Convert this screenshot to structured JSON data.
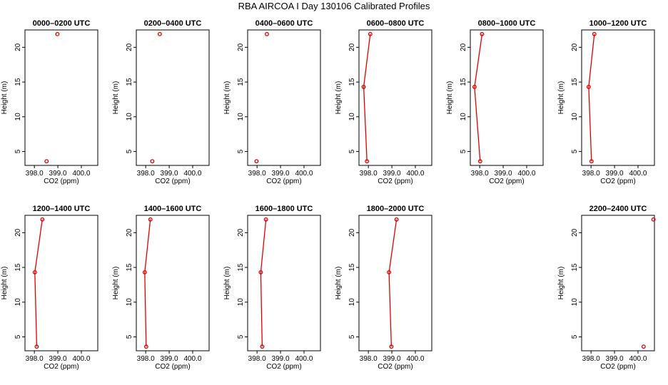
{
  "figure": {
    "title": "RBA AIRCOA I  Day 130106  Calibrated Profiles"
  },
  "colors": {
    "series": "#e00000",
    "axis": "#000000"
  },
  "chart_data": [
    {
      "type": "line",
      "title": "0000–0200 UTC",
      "xlabel": "CO2 (ppm)",
      "ylabel": "Height (m)",
      "xlim": [
        397.6,
        400.7
      ],
      "ylim": [
        3,
        22.5
      ],
      "xticks": [
        "398.0",
        "399.0",
        "400.0"
      ],
      "yticks": [
        "5",
        "10",
        "15",
        "20"
      ],
      "x": [
        398.52,
        398.98
      ],
      "y": [
        3.6,
        21.9
      ],
      "connected": false
    },
    {
      "type": "line",
      "title": "0200–0400 UTC",
      "xlabel": "CO2 (ppm)",
      "ylabel": "Height (m)",
      "xlim": [
        397.6,
        400.7
      ],
      "ylim": [
        3,
        22.5
      ],
      "xticks": [
        "398.0",
        "399.0",
        "400.0"
      ],
      "yticks": [
        "5",
        "10",
        "15",
        "20"
      ],
      "x": [
        398.28,
        398.6
      ],
      "y": [
        3.6,
        21.9
      ],
      "connected": false
    },
    {
      "type": "line",
      "title": "0400–0600 UTC",
      "xlabel": "CO2 (ppm)",
      "ylabel": "Height (m)",
      "xlim": [
        397.6,
        400.7
      ],
      "ylim": [
        3,
        22.5
      ],
      "xticks": [
        "398.0",
        "399.0",
        "400.0"
      ],
      "yticks": [
        "5",
        "10",
        "15",
        "20"
      ],
      "x": [
        397.98,
        398.42
      ],
      "y": [
        3.6,
        21.9
      ],
      "connected": false
    },
    {
      "type": "line",
      "title": "0600–0800 UTC",
      "xlabel": "CO2 (ppm)",
      "ylabel": "Height (m)",
      "xlim": [
        397.6,
        400.7
      ],
      "ylim": [
        3,
        22.5
      ],
      "xticks": [
        "398.0",
        "399.0",
        "400.0"
      ],
      "yticks": [
        "5",
        "10",
        "15",
        "20"
      ],
      "x": [
        397.94,
        397.8,
        398.08
      ],
      "y": [
        3.6,
        14.3,
        21.9
      ],
      "connected": true
    },
    {
      "type": "line",
      "title": "0800–1000 UTC",
      "xlabel": "CO2 (ppm)",
      "ylabel": "Height (m)",
      "xlim": [
        397.6,
        400.7
      ],
      "ylim": [
        3,
        22.5
      ],
      "xticks": [
        "398.0",
        "399.0",
        "400.0"
      ],
      "yticks": [
        "5",
        "10",
        "15",
        "20"
      ],
      "x": [
        398.02,
        397.78,
        398.1
      ],
      "y": [
        3.6,
        14.3,
        21.9
      ],
      "connected": true
    },
    {
      "type": "line",
      "title": "1000–1200 UTC",
      "xlabel": "CO2 (ppm)",
      "ylabel": "Height (m)",
      "xlim": [
        397.6,
        400.7
      ],
      "ylim": [
        3,
        22.5
      ],
      "xticks": [
        "398.0",
        "399.0",
        "400.0"
      ],
      "yticks": [
        "5",
        "10",
        "15",
        "20"
      ],
      "x": [
        398.02,
        397.9,
        398.14
      ],
      "y": [
        3.6,
        14.3,
        21.9
      ],
      "connected": true
    },
    {
      "type": "line",
      "title": "1200–1400 UTC",
      "xlabel": "CO2 (ppm)",
      "ylabel": "Height (m)",
      "xlim": [
        397.6,
        400.7
      ],
      "ylim": [
        3,
        22.5
      ],
      "xticks": [
        "398.0",
        "399.0",
        "400.0"
      ],
      "yticks": [
        "5",
        "10",
        "15",
        "20"
      ],
      "x": [
        398.1,
        398.02,
        398.34
      ],
      "y": [
        3.6,
        14.3,
        21.9
      ],
      "connected": true
    },
    {
      "type": "line",
      "title": "1400–1600 UTC",
      "xlabel": "CO2 (ppm)",
      "ylabel": "Height (m)",
      "xlim": [
        397.6,
        400.7
      ],
      "ylim": [
        3,
        22.5
      ],
      "xticks": [
        "398.0",
        "399.0",
        "400.0"
      ],
      "yticks": [
        "5",
        "10",
        "15",
        "20"
      ],
      "x": [
        398.02,
        397.96,
        398.2
      ],
      "y": [
        3.6,
        14.3,
        21.9
      ],
      "connected": true
    },
    {
      "type": "line",
      "title": "1600–1800 UTC",
      "xlabel": "CO2 (ppm)",
      "ylabel": "Height (m)",
      "xlim": [
        397.6,
        400.7
      ],
      "ylim": [
        3,
        22.5
      ],
      "xticks": [
        "398.0",
        "399.0",
        "400.0"
      ],
      "yticks": [
        "5",
        "10",
        "15",
        "20"
      ],
      "x": [
        398.22,
        398.16,
        398.38
      ],
      "y": [
        3.6,
        14.3,
        21.9
      ],
      "connected": true
    },
    {
      "type": "line",
      "title": "1800–2000 UTC",
      "xlabel": "CO2 (ppm)",
      "ylabel": "Height (m)",
      "xlim": [
        397.6,
        400.7
      ],
      "ylim": [
        3,
        22.5
      ],
      "xticks": [
        "398.0",
        "399.0",
        "400.0"
      ],
      "yticks": [
        "5",
        "10",
        "15",
        "20"
      ],
      "x": [
        398.98,
        398.88,
        399.2
      ],
      "y": [
        3.6,
        14.3,
        21.9
      ],
      "connected": true
    },
    {
      "type": "line",
      "title": "2200–2400 UTC",
      "xlabel": "CO2 (ppm)",
      "ylabel": "Height (m)",
      "xlim": [
        397.6,
        400.7
      ],
      "ylim": [
        3,
        22.5
      ],
      "xticks": [
        "398.0",
        "399.0",
        "400.0"
      ],
      "yticks": [
        "5",
        "10",
        "15",
        "20"
      ],
      "x": [
        400.24,
        400.66
      ],
      "y": [
        3.6,
        21.9
      ],
      "connected": false
    }
  ]
}
